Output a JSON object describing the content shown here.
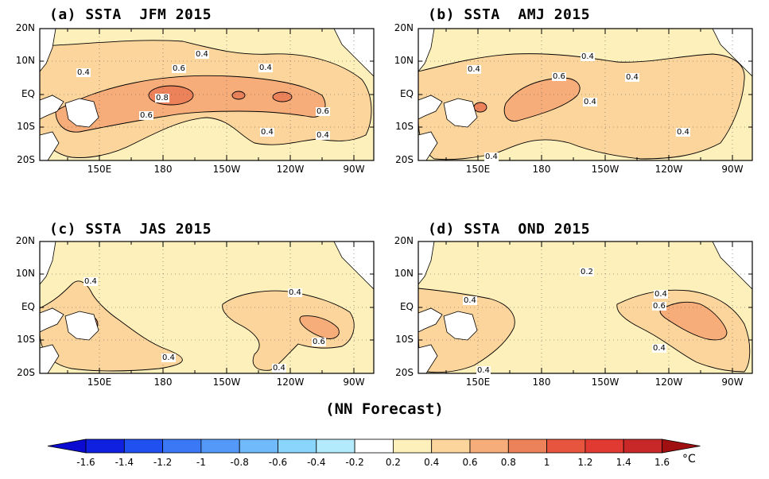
{
  "colors": {
    "land": "#ffffff",
    "ocean_base": "#fdf0bb",
    "sst_0_4": "#fbd59b",
    "sst_0_6": "#f6ad7a",
    "sst_0_8": "#ec8259",
    "contour": "#000000"
  },
  "panels": [
    {
      "id": "a",
      "title": "(a) SSTA  JFM 2015",
      "contour_labels": [
        "0.4",
        "0.4",
        "0.4",
        "0.6",
        "0.8",
        "0.6",
        "0.6",
        "0.4",
        "0.4"
      ]
    },
    {
      "id": "b",
      "title": "(b) SSTA  AMJ 2015",
      "contour_labels": [
        "0.4",
        "0.4",
        "0.6",
        "0.4",
        "0.4",
        "0.4",
        "0.4"
      ]
    },
    {
      "id": "c",
      "title": "(c) SSTA  JAS 2015",
      "contour_labels": [
        "0.4",
        "0.4",
        "0.6",
        "0.4",
        "0.4"
      ]
    },
    {
      "id": "d",
      "title": "(d) SSTA  OND 2015",
      "contour_labels": [
        "0.2",
        "0.4",
        "0.4",
        "0.6",
        "0.4",
        "0.4"
      ]
    }
  ],
  "lat_labels": [
    "20N",
    "10N",
    "EQ",
    "10S",
    "20S"
  ],
  "lon_labels": [
    "150E",
    "180",
    "150W",
    "120W",
    "90W"
  ],
  "footer": "(NN Forecast)",
  "colorbar": {
    "unit": "°C",
    "tick_labels": [
      "-1.6",
      "-1.4",
      "-1.2",
      "-1",
      "-0.8",
      "-0.6",
      "-0.4",
      "-0.2",
      "0.2",
      "0.4",
      "0.6",
      "0.8",
      "1",
      "1.2",
      "1.4",
      "1.6"
    ],
    "colors": [
      "#1020e0",
      "#2050f0",
      "#3b78f5",
      "#5599f8",
      "#70b9fa",
      "#8ad5fb",
      "#b3eafc",
      "#ffffff",
      "#fdf0bb",
      "#fbd59b",
      "#f6ad7a",
      "#ec8259",
      "#e8553e",
      "#e03a32",
      "#c82828"
    ],
    "low_arrow_color": "#0a0ad0",
    "high_arrow_color": "#a01010"
  }
}
